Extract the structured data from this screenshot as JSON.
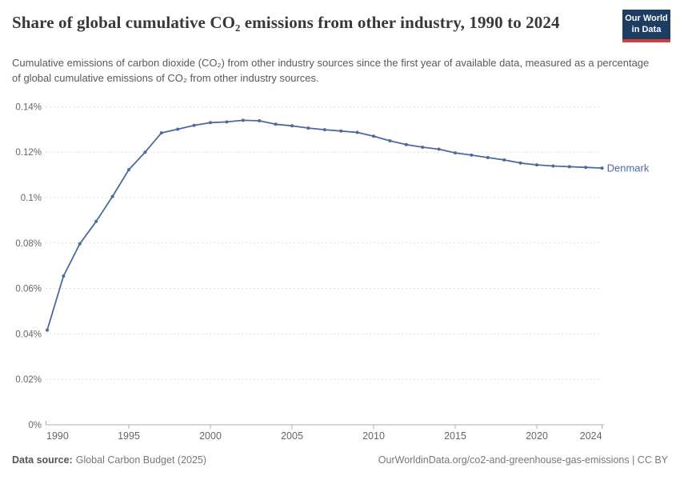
{
  "header": {
    "title": "Share of global cumulative CO₂ emissions from other industry, 1990 to 2024",
    "subtitle": "Cumulative emissions of carbon dioxide (CO₂) from other industry sources since the first year of available data, measured as a percentage of global cumulative emissions of CO₂ from other industry sources.",
    "logo": {
      "line1": "Our World",
      "line2": "in Data",
      "bg_color": "#1d3d63",
      "accent_color": "#d73c34"
    }
  },
  "footer": {
    "data_source_label": "Data source:",
    "data_source_value": "Global Carbon Budget (2025)",
    "credit": "OurWorldinData.org/co2-and-greenhouse-gas-emissions | CC BY"
  },
  "chart_data": {
    "type": "line",
    "title": "Share of global cumulative CO₂ emissions from other industry, 1990 to 2024",
    "xlabel": "",
    "ylabel": "",
    "unit": "%",
    "grid": "horizontal-dashed",
    "legend_position": "end-of-line-label",
    "xlim": [
      1990,
      2024
    ],
    "ylim": [
      0,
      0.14
    ],
    "x_ticks": [
      1990,
      1995,
      2000,
      2005,
      2010,
      2015,
      2020,
      2024
    ],
    "y_ticks": [
      {
        "value": 0.0,
        "label": "0%"
      },
      {
        "value": 0.02,
        "label": "0.02%"
      },
      {
        "value": 0.04,
        "label": "0.04%"
      },
      {
        "value": 0.06,
        "label": "0.06%"
      },
      {
        "value": 0.08,
        "label": "0.08%"
      },
      {
        "value": 0.1,
        "label": "0.1%"
      },
      {
        "value": 0.12,
        "label": "0.12%"
      },
      {
        "value": 0.14,
        "label": "0.14%"
      }
    ],
    "end_label": "Denmark",
    "series": [
      {
        "name": "Denmark",
        "color": "#4C6A9C",
        "x": [
          1990,
          1991,
          1992,
          1993,
          1994,
          1995,
          1996,
          1997,
          1998,
          1999,
          2000,
          2001,
          2002,
          2003,
          2004,
          2005,
          2006,
          2007,
          2008,
          2009,
          2010,
          2011,
          2012,
          2013,
          2014,
          2015,
          2016,
          2017,
          2018,
          2019,
          2020,
          2021,
          2022,
          2023,
          2024
        ],
        "values": [
          0.0417,
          0.0655,
          0.0797,
          0.0895,
          0.1005,
          0.1123,
          0.12,
          0.1285,
          0.1301,
          0.1318,
          0.133,
          0.1333,
          0.134,
          0.1338,
          0.1323,
          0.1316,
          0.1306,
          0.1299,
          0.1293,
          0.1287,
          0.127,
          0.125,
          0.1233,
          0.1222,
          0.1213,
          0.1197,
          0.1187,
          0.1176,
          0.1166,
          0.1152,
          0.1144,
          0.1139,
          0.1136,
          0.1133,
          0.113
        ]
      }
    ]
  }
}
